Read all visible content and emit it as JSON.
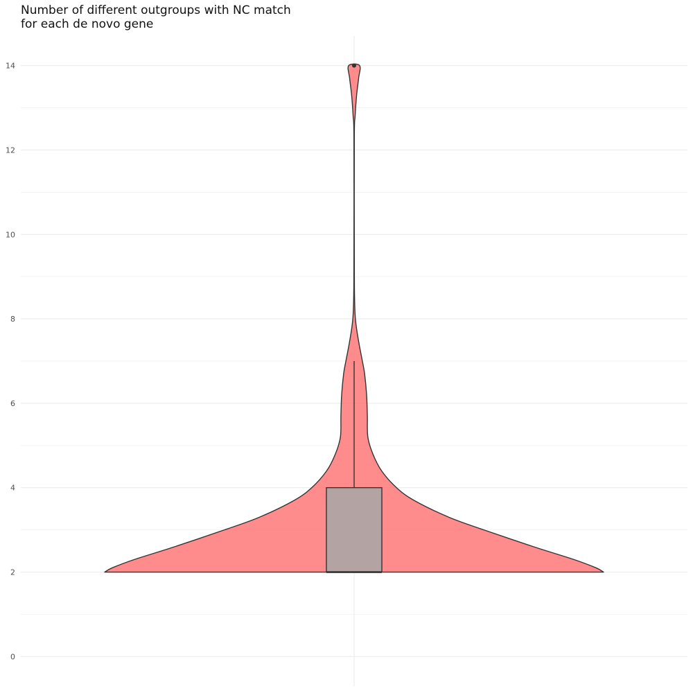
{
  "chart_data": {
    "type": "violin",
    "title_lines": [
      "Number of different outgroups with NC match",
      "for each de novo gene"
    ],
    "xlabel": "",
    "ylabel": "",
    "ylim": [
      -0.7,
      14.7
    ],
    "y_ticks": [
      0,
      2,
      4,
      6,
      8,
      10,
      12,
      14
    ],
    "grid": true,
    "legend": "none",
    "violin": {
      "fill": "#FF6F6F",
      "outline": "#333333",
      "density_profile": [
        {
          "y": 2.0,
          "w": 1.0
        },
        {
          "y": 2.1,
          "w": 0.97
        },
        {
          "y": 2.3,
          "w": 0.88
        },
        {
          "y": 2.6,
          "w": 0.72
        },
        {
          "y": 3.0,
          "w": 0.52
        },
        {
          "y": 3.3,
          "w": 0.38
        },
        {
          "y": 3.7,
          "w": 0.24
        },
        {
          "y": 4.0,
          "w": 0.17
        },
        {
          "y": 4.4,
          "w": 0.11
        },
        {
          "y": 4.8,
          "w": 0.075
        },
        {
          "y": 5.2,
          "w": 0.055
        },
        {
          "y": 5.7,
          "w": 0.053
        },
        {
          "y": 6.2,
          "w": 0.05
        },
        {
          "y": 6.7,
          "w": 0.042
        },
        {
          "y": 7.0,
          "w": 0.033
        },
        {
          "y": 7.4,
          "w": 0.02
        },
        {
          "y": 7.8,
          "w": 0.009
        },
        {
          "y": 8.1,
          "w": 0.004
        },
        {
          "y": 8.6,
          "w": 0.0015
        },
        {
          "y": 9.5,
          "w": 0.0008
        },
        {
          "y": 12.3,
          "w": 0.0008
        },
        {
          "y": 12.8,
          "w": 0.004
        },
        {
          "y": 13.3,
          "w": 0.01
        },
        {
          "y": 13.7,
          "w": 0.018
        },
        {
          "y": 14.0,
          "w": 0.022
        }
      ]
    },
    "boxplot": {
      "q1": 2,
      "median": 2,
      "q3": 4,
      "whisker_low": 2,
      "whisker_high": 7,
      "outliers": [
        14
      ],
      "fill": "#B3A3A3"
    }
  }
}
